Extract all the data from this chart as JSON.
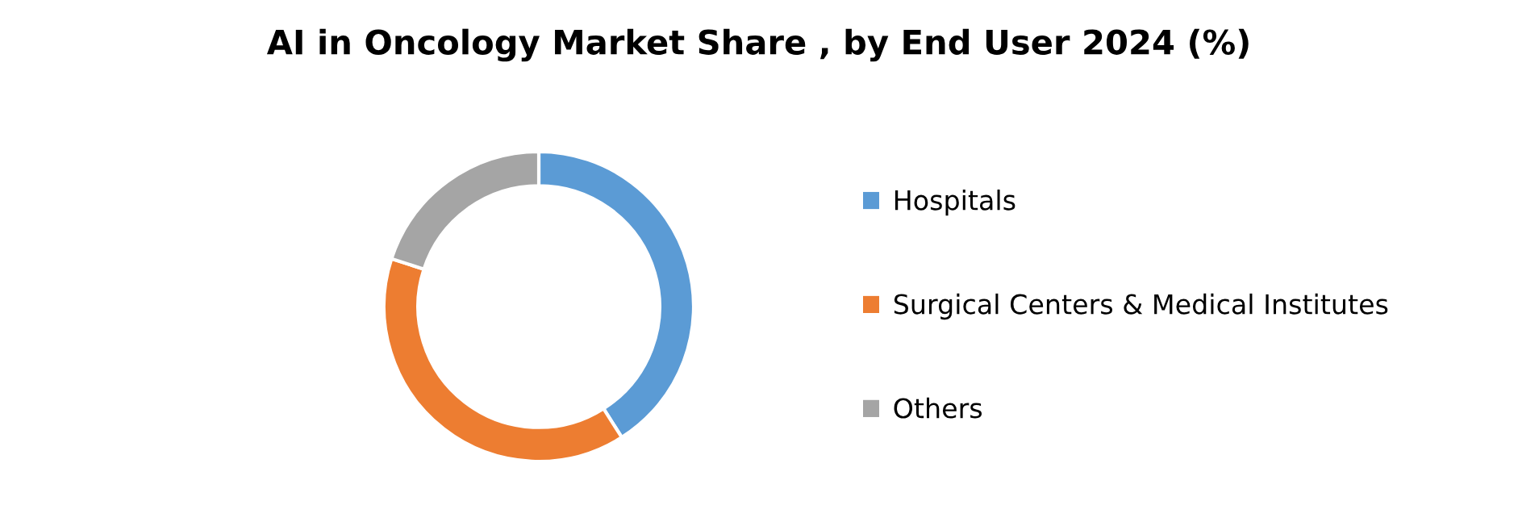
{
  "chart_data": {
    "type": "donut",
    "title": "AI in Oncology Market Share , by End User 2024 (%)",
    "categories": [
      "Hospitals",
      "Surgical Centers & Medical Institutes",
      "Others"
    ],
    "values": [
      41,
      39,
      20
    ],
    "colors": [
      "#5b9bd5",
      "#ed7d31",
      "#a5a5a5"
    ],
    "legend": "right"
  }
}
